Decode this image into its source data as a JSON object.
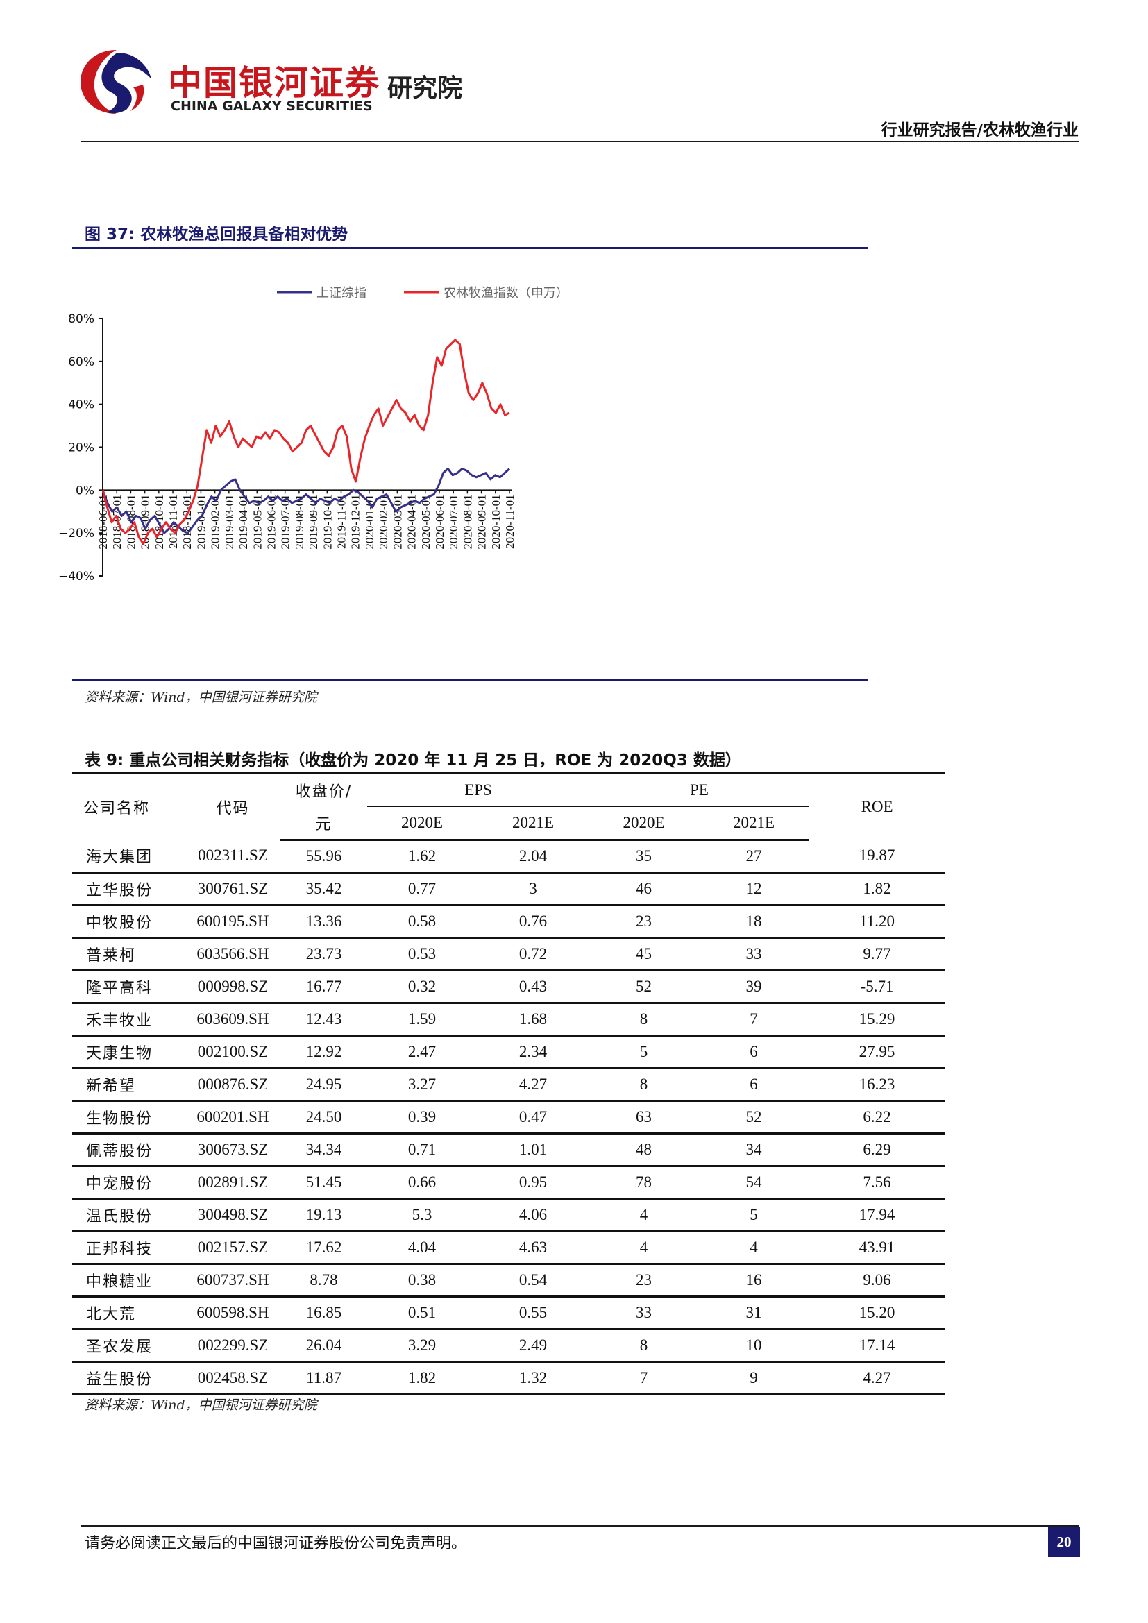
{
  "header": {
    "brand_cn": "中国银河证券",
    "brand_en": "CHINA GALAXY SECURITIES",
    "brand_sub": "研究院",
    "report_type": "行业研究报告/农林牧渔行业",
    "brand_colors": {
      "red": "#c8161d",
      "navy": "#1a1a6e"
    }
  },
  "figure": {
    "caption": "图 37:  农林牧渔总回报具备相对优势",
    "source": "资料来源：Wind，中国银河证券研究院"
  },
  "chart_data": {
    "type": "line",
    "title": "",
    "xlabel": "",
    "ylabel": "",
    "ylim": [
      -0.4,
      0.8
    ],
    "y_ticks": [
      "80%",
      "60%",
      "40%",
      "20%",
      "0%",
      "−20%",
      "−40%"
    ],
    "y_tick_values": [
      0.8,
      0.6,
      0.4,
      0.2,
      0.0,
      -0.2,
      -0.4
    ],
    "x_ticks": [
      "2018-06-01",
      "2018-07-01",
      "2018-08-01",
      "2018-09-01",
      "2018-10-01",
      "2018-11-01",
      "2018-12-01",
      "2019-01-01",
      "2019-02-01",
      "2019-03-01",
      "2019-04-01",
      "2019-05-01",
      "2019-06-01",
      "2019-07-01",
      "2019-08-01",
      "2019-09-01",
      "2019-10-01",
      "2019-11-01",
      "2019-12-01",
      "2020-01-01",
      "2020-02-01",
      "2020-03-01",
      "2020-04-01",
      "2020-05-01",
      "2020-06-01",
      "2020-07-01",
      "2020-08-01",
      "2020-09-01",
      "2020-10-01",
      "2020-11-01"
    ],
    "legend_position": "top",
    "grid": false,
    "series": [
      {
        "name": "上证综指",
        "color": "#35308a",
        "values": [
          0.0,
          -0.06,
          -0.1,
          -0.08,
          -0.12,
          -0.1,
          -0.15,
          -0.12,
          -0.13,
          -0.18,
          -0.14,
          -0.12,
          -0.16,
          -0.2,
          -0.18,
          -0.15,
          -0.17,
          -0.19,
          -0.2,
          -0.17,
          -0.14,
          -0.12,
          -0.07,
          -0.03,
          -0.05,
          0.0,
          0.02,
          0.04,
          0.05,
          0.0,
          -0.03,
          -0.06,
          -0.05,
          -0.06,
          -0.05,
          -0.03,
          -0.05,
          -0.03,
          -0.05,
          -0.04,
          -0.06,
          -0.05,
          -0.04,
          -0.02,
          -0.04,
          -0.06,
          -0.04,
          -0.05,
          -0.06,
          -0.04,
          -0.05,
          -0.03,
          -0.02,
          0.0,
          -0.01,
          -0.03,
          -0.05,
          -0.08,
          -0.04,
          -0.03,
          -0.02,
          -0.06,
          -0.1,
          -0.08,
          -0.07,
          -0.06,
          -0.05,
          -0.06,
          -0.04,
          -0.03,
          -0.02,
          0.02,
          0.08,
          0.1,
          0.07,
          0.08,
          0.1,
          0.09,
          0.07,
          0.06,
          0.07,
          0.08,
          0.05,
          0.07,
          0.06,
          0.08,
          0.1
        ]
      },
      {
        "name": "农林牧渔指数（申万）",
        "color": "#e8262a",
        "values": [
          0.0,
          -0.08,
          -0.15,
          -0.12,
          -0.18,
          -0.2,
          -0.18,
          -0.15,
          -0.22,
          -0.25,
          -0.2,
          -0.18,
          -0.22,
          -0.18,
          -0.15,
          -0.18,
          -0.2,
          -0.16,
          -0.14,
          -0.1,
          -0.05,
          0.02,
          0.15,
          0.28,
          0.22,
          0.3,
          0.25,
          0.28,
          0.32,
          0.25,
          0.2,
          0.24,
          0.22,
          0.2,
          0.25,
          0.24,
          0.27,
          0.24,
          0.28,
          0.27,
          0.24,
          0.22,
          0.18,
          0.2,
          0.22,
          0.28,
          0.3,
          0.26,
          0.22,
          0.18,
          0.16,
          0.2,
          0.28,
          0.3,
          0.25,
          0.1,
          0.04,
          0.15,
          0.24,
          0.3,
          0.35,
          0.38,
          0.3,
          0.34,
          0.38,
          0.42,
          0.38,
          0.36,
          0.32,
          0.35,
          0.3,
          0.28,
          0.35,
          0.5,
          0.62,
          0.58,
          0.66,
          0.68,
          0.7,
          0.68,
          0.55,
          0.45,
          0.42,
          0.45,
          0.5,
          0.45,
          0.38,
          0.36,
          0.4,
          0.35,
          0.36
        ]
      }
    ]
  },
  "table": {
    "caption": "表 9:  重点公司相关财务指标（收盘价为 2020 年 11 月 25 日，ROE 为 2020Q3 数据）",
    "headers": {
      "name": "公司名称",
      "code": "代码",
      "price_line1": "收盘价/",
      "price_line2": "元",
      "eps": "EPS",
      "pe": "PE",
      "roe": "ROE",
      "eps_2020": "2020E",
      "eps_2021": "2021E",
      "pe_2020": "2020E",
      "pe_2021": "2021E"
    },
    "rows": [
      {
        "name": "海大集团",
        "code": "002311.SZ",
        "price": "55.96",
        "eps2020": "1.62",
        "eps2021": "2.04",
        "pe2020": "35",
        "pe2021": "27",
        "roe": "19.87"
      },
      {
        "name": "立华股份",
        "code": "300761.SZ",
        "price": "35.42",
        "eps2020": "0.77",
        "eps2021": "3",
        "pe2020": "46",
        "pe2021": "12",
        "roe": "1.82"
      },
      {
        "name": "中牧股份",
        "code": "600195.SH",
        "price": "13.36",
        "eps2020": "0.58",
        "eps2021": "0.76",
        "pe2020": "23",
        "pe2021": "18",
        "roe": "11.20"
      },
      {
        "name": "普莱柯",
        "code": "603566.SH",
        "price": "23.73",
        "eps2020": "0.53",
        "eps2021": "0.72",
        "pe2020": "45",
        "pe2021": "33",
        "roe": "9.77"
      },
      {
        "name": "隆平高科",
        "code": "000998.SZ",
        "price": "16.77",
        "eps2020": "0.32",
        "eps2021": "0.43",
        "pe2020": "52",
        "pe2021": "39",
        "roe": "-5.71"
      },
      {
        "name": "禾丰牧业",
        "code": "603609.SH",
        "price": "12.43",
        "eps2020": "1.59",
        "eps2021": "1.68",
        "pe2020": "8",
        "pe2021": "7",
        "roe": "15.29"
      },
      {
        "name": "天康生物",
        "code": "002100.SZ",
        "price": "12.92",
        "eps2020": "2.47",
        "eps2021": "2.34",
        "pe2020": "5",
        "pe2021": "6",
        "roe": "27.95"
      },
      {
        "name": "新希望",
        "code": "000876.SZ",
        "price": "24.95",
        "eps2020": "3.27",
        "eps2021": "4.27",
        "pe2020": "8",
        "pe2021": "6",
        "roe": "16.23"
      },
      {
        "name": "生物股份",
        "code": "600201.SH",
        "price": "24.50",
        "eps2020": "0.39",
        "eps2021": "0.47",
        "pe2020": "63",
        "pe2021": "52",
        "roe": "6.22"
      },
      {
        "name": "佩蒂股份",
        "code": "300673.SZ",
        "price": "34.34",
        "eps2020": "0.71",
        "eps2021": "1.01",
        "pe2020": "48",
        "pe2021": "34",
        "roe": "6.29"
      },
      {
        "name": "中宠股份",
        "code": "002891.SZ",
        "price": "51.45",
        "eps2020": "0.66",
        "eps2021": "0.95",
        "pe2020": "78",
        "pe2021": "54",
        "roe": "7.56"
      },
      {
        "name": "温氏股份",
        "code": "300498.SZ",
        "price": "19.13",
        "eps2020": "5.3",
        "eps2021": "4.06",
        "pe2020": "4",
        "pe2021": "5",
        "roe": "17.94"
      },
      {
        "name": "正邦科技",
        "code": "002157.SZ",
        "price": "17.62",
        "eps2020": "4.04",
        "eps2021": "4.63",
        "pe2020": "4",
        "pe2021": "4",
        "roe": "43.91"
      },
      {
        "name": "中粮糖业",
        "code": "600737.SH",
        "price": "8.78",
        "eps2020": "0.38",
        "eps2021": "0.54",
        "pe2020": "23",
        "pe2021": "16",
        "roe": "9.06"
      },
      {
        "name": "北大荒",
        "code": "600598.SH",
        "price": "16.85",
        "eps2020": "0.51",
        "eps2021": "0.55",
        "pe2020": "33",
        "pe2021": "31",
        "roe": "15.20"
      },
      {
        "name": "圣农发展",
        "code": "002299.SZ",
        "price": "26.04",
        "eps2020": "3.29",
        "eps2021": "2.49",
        "pe2020": "8",
        "pe2021": "10",
        "roe": "17.14"
      },
      {
        "name": "益生股份",
        "code": "002458.SZ",
        "price": "11.87",
        "eps2020": "1.82",
        "eps2021": "1.32",
        "pe2020": "7",
        "pe2021": "9",
        "roe": "4.27"
      }
    ],
    "source": "资料来源：Wind，中国银河证券研究院"
  },
  "footer": {
    "disclaimer": "请务必阅读正文最后的中国银河证券股份公司免责声明。",
    "page_number": "20"
  }
}
